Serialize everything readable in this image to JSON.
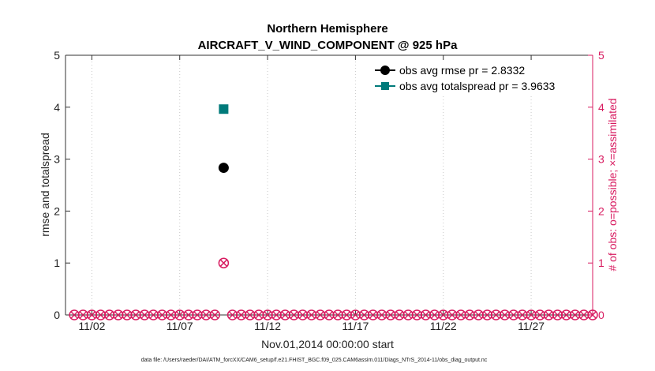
{
  "chart_data": {
    "type": "scatter",
    "title": "Northern Hemisphere",
    "subtitle": "AIRCRAFT_V_WIND_COMPONENT @ 925 hPa",
    "xlabel": "Nov.01,2014 00:00:00 start",
    "ylabel": "rmse and totalspread",
    "ylabel_right": "# of obs: o=possible; ×=assimilated",
    "footnote": "data file: /Users/raeder/DAI/ATM_forcXX/CAM6_setup/f.e21.FHIST_BGC.f09_025.CAM6assim.011/Diags_NTrS_2014-11/obs_diag_output.nc",
    "x_ticks": [
      "11/02",
      "11/07",
      "11/12",
      "11/17",
      "11/22",
      "11/27"
    ],
    "x_tick_days": [
      2,
      7,
      12,
      17,
      22,
      27
    ],
    "xlim_days": [
      0.5,
      30.5
    ],
    "ylim": [
      0,
      5
    ],
    "y_ticks": [
      0,
      1,
      2,
      3,
      4,
      5
    ],
    "y2lim": [
      0,
      5
    ],
    "y2_ticks": [
      0,
      1,
      2,
      3,
      4,
      5
    ],
    "grid": "x-major dotted",
    "legend_position": "top-right",
    "colors": {
      "rmse": "#000000",
      "totalspread": "#007a7a",
      "obs": "#d81b60"
    },
    "series": [
      {
        "name": "obs avg rmse pr = 2.8332",
        "marker": "circle",
        "x_days": [
          9.5
        ],
        "values": [
          2.8332
        ]
      },
      {
        "name": "obs avg totalspread pr = 3.9633",
        "marker": "square",
        "x_days": [
          9.5
        ],
        "values": [
          3.9633
        ]
      }
    ],
    "obs_counts": {
      "x_days": [
        1.0,
        1.5,
        2.0,
        2.5,
        3.0,
        3.5,
        4.0,
        4.5,
        5.0,
        5.5,
        6.0,
        6.5,
        7.0,
        7.5,
        8.0,
        8.5,
        9.0,
        9.5,
        10.0,
        10.5,
        11.0,
        11.5,
        12.0,
        12.5,
        13.0,
        13.5,
        14.0,
        14.5,
        15.0,
        15.5,
        16.0,
        16.5,
        17.0,
        17.5,
        18.0,
        18.5,
        19.0,
        19.5,
        20.0,
        20.5,
        21.0,
        21.5,
        22.0,
        22.5,
        23.0,
        23.5,
        24.0,
        24.5,
        25.0,
        25.5,
        26.0,
        26.5,
        27.0,
        27.5,
        28.0,
        28.5,
        29.0,
        29.5,
        30.0,
        30.5
      ],
      "possible": [
        0,
        0,
        0,
        0,
        0,
        0,
        0,
        0,
        0,
        0,
        0,
        0,
        0,
        0,
        0,
        0,
        0,
        1,
        0,
        0,
        0,
        0,
        0,
        0,
        0,
        0,
        0,
        0,
        0,
        0,
        0,
        0,
        0,
        0,
        0,
        0,
        0,
        0,
        0,
        0,
        0,
        0,
        0,
        0,
        0,
        0,
        0,
        0,
        0,
        0,
        0,
        0,
        0,
        0,
        0,
        0,
        0,
        0,
        0,
        0
      ],
      "assimilated": [
        0,
        0,
        0,
        0,
        0,
        0,
        0,
        0,
        0,
        0,
        0,
        0,
        0,
        0,
        0,
        0,
        0,
        1,
        0,
        0,
        0,
        0,
        0,
        0,
        0,
        0,
        0,
        0,
        0,
        0,
        0,
        0,
        0,
        0,
        0,
        0,
        0,
        0,
        0,
        0,
        0,
        0,
        0,
        0,
        0,
        0,
        0,
        0,
        0,
        0,
        0,
        0,
        0,
        0,
        0,
        0,
        0,
        0,
        0,
        0
      ]
    }
  }
}
